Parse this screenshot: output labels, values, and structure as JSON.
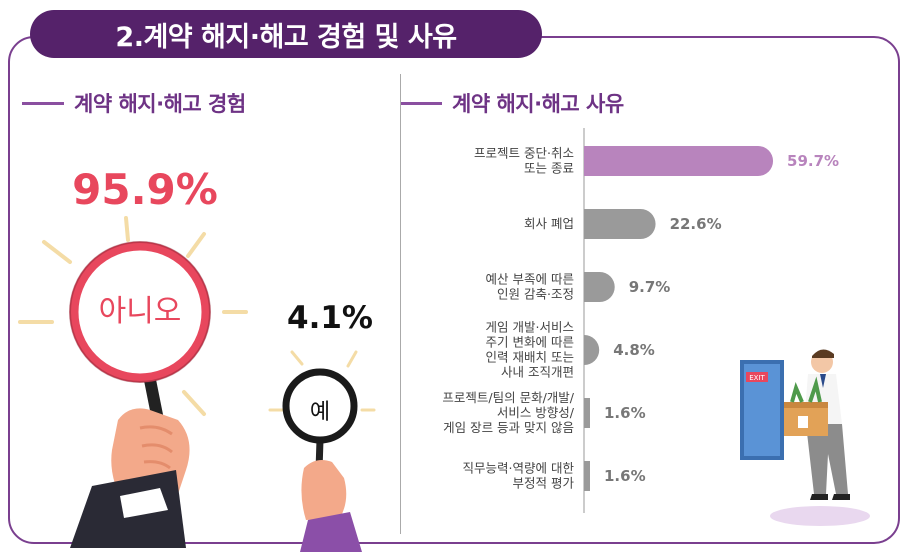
{
  "header": {
    "title": "2.계약 해지·해고 경험 및 사유"
  },
  "experience": {
    "section_title": "계약 해지·해고 경험",
    "no_pct": "95.9%",
    "no_label": "아니오",
    "yes_pct": "4.1%",
    "yes_label": "예"
  },
  "reasons": {
    "section_title": "계약 해지·해고 사유"
  },
  "colors": {
    "brand": "#55226a",
    "accent_red": "#e8475d",
    "bar_highlight": "#b884bd",
    "bar_gray": "#9a9a9a"
  },
  "chart_data": {
    "type": "bar",
    "orientation": "horizontal",
    "categories": [
      [
        "프로젝트 중단·취소",
        "또는 종료"
      ],
      [
        "회사 폐업"
      ],
      [
        "예산 부족에 따른",
        "인원 감축·조정"
      ],
      [
        "게임 개발·서비스",
        "주기 변화에 따른",
        "인력 재배치 또는",
        "사내 조직개편"
      ],
      [
        "프로젝트/팀의 문화/개발/",
        "서비스 방향성/",
        "게임 장르 등과 맞지 않음"
      ],
      [
        "직무능력·역량에 대한",
        "부정적 평가"
      ]
    ],
    "values": [
      59.7,
      22.6,
      9.7,
      4.8,
      1.6,
      1.6
    ],
    "value_labels": [
      "59.7%",
      "22.6%",
      "9.7%",
      "4.8%",
      "1.6%",
      "1.6%"
    ],
    "highlight_index": 0,
    "xlim": [
      0,
      60
    ]
  }
}
